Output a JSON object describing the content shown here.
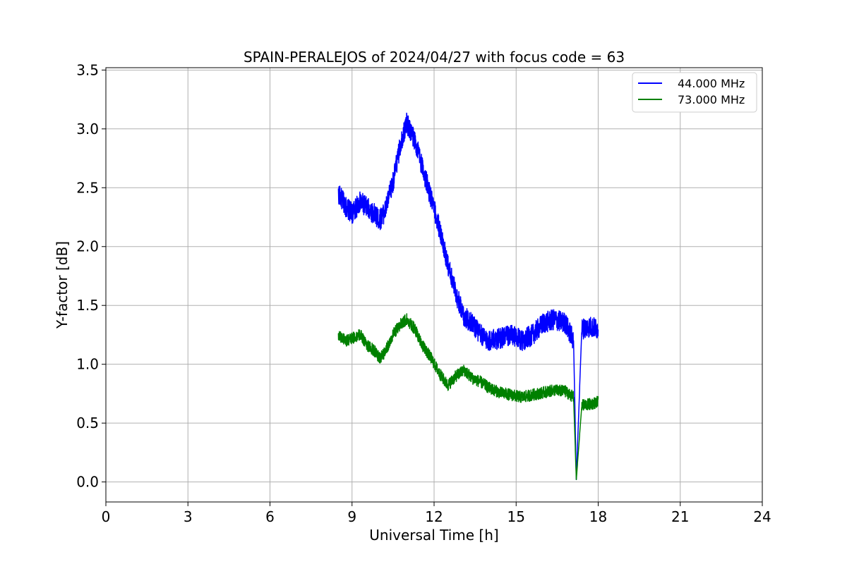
{
  "chart_data": {
    "type": "line",
    "title": "SPAIN-PERALEJOS of 2024/04/27 with focus code = 63",
    "xlabel": "Universal Time [h]",
    "ylabel": "Y-factor [dB]",
    "xlim": [
      0,
      24
    ],
    "ylim": [
      -0.17,
      3.52
    ],
    "xticks": [
      0,
      3,
      6,
      9,
      12,
      15,
      18,
      21,
      24
    ],
    "xtick_labels": [
      "0",
      "3",
      "6",
      "9",
      "12",
      "15",
      "18",
      "21",
      "24"
    ],
    "yticks": [
      0.0,
      0.5,
      1.0,
      1.5,
      2.0,
      2.5,
      3.0,
      3.5
    ],
    "ytick_labels": [
      "0.0",
      "0.5",
      "1.0",
      "1.5",
      "2.0",
      "2.5",
      "3.0",
      "3.5"
    ],
    "grid": true,
    "legend_position": "top-right",
    "series": [
      {
        "name": "44.000 MHz",
        "color": "#0000ff",
        "x": [
          8.5,
          8.8,
          9.0,
          9.3,
          9.6,
          9.8,
          10.0,
          10.2,
          10.5,
          10.8,
          11.0,
          11.3,
          11.6,
          11.9,
          12.2,
          12.5,
          12.8,
          13.1,
          13.4,
          13.7,
          14.0,
          14.4,
          14.8,
          15.2,
          15.6,
          16.0,
          16.4,
          16.8,
          17.1,
          17.2,
          17.4,
          17.7,
          18.0
        ],
        "y": [
          2.45,
          2.33,
          2.28,
          2.38,
          2.32,
          2.28,
          2.22,
          2.3,
          2.55,
          2.9,
          3.05,
          2.9,
          2.65,
          2.4,
          2.15,
          1.85,
          1.6,
          1.4,
          1.35,
          1.25,
          1.2,
          1.22,
          1.25,
          1.2,
          1.25,
          1.35,
          1.38,
          1.35,
          1.2,
          0.02,
          1.3,
          1.32,
          1.3
        ],
        "noise": 0.09
      },
      {
        "name": "73.000 MHz",
        "color": "#008000",
        "x": [
          8.5,
          8.8,
          9.0,
          9.3,
          9.6,
          9.8,
          10.0,
          10.2,
          10.5,
          10.8,
          11.0,
          11.3,
          11.6,
          11.9,
          12.2,
          12.5,
          12.8,
          13.1,
          13.4,
          13.7,
          14.0,
          14.4,
          14.8,
          15.2,
          15.6,
          16.0,
          16.4,
          16.8,
          17.1,
          17.2,
          17.4,
          17.7,
          18.0
        ],
        "y": [
          1.25,
          1.2,
          1.22,
          1.25,
          1.15,
          1.12,
          1.05,
          1.1,
          1.25,
          1.35,
          1.38,
          1.3,
          1.15,
          1.05,
          0.92,
          0.82,
          0.9,
          0.95,
          0.88,
          0.85,
          0.8,
          0.76,
          0.74,
          0.72,
          0.74,
          0.76,
          0.78,
          0.77,
          0.72,
          0.02,
          0.65,
          0.66,
          0.68
        ],
        "noise": 0.05
      }
    ]
  }
}
